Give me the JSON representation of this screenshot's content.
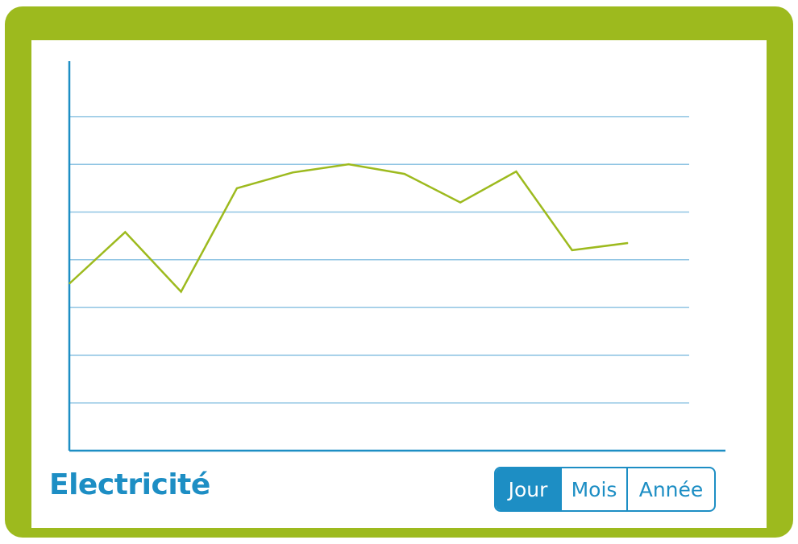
{
  "chart_data": {
    "type": "line",
    "title": "Electricité",
    "xlabel": "",
    "ylabel": "",
    "x": [
      0,
      1,
      2,
      3,
      4,
      5,
      6,
      7,
      8,
      9,
      10
    ],
    "series": [
      {
        "values": [
          3.5,
          4.58,
          3.33,
          5.5,
          5.83,
          6,
          5.8,
          5.2,
          5.85,
          4.2,
          4.35
        ]
      }
    ],
    "ylim": [
      0,
      8
    ],
    "grid": true,
    "grid_lines": 7,
    "line_color": "#9dba1e",
    "grid_color": "#8fc4e3",
    "axis_color": "#1d8ec4"
  },
  "period_selector": {
    "options": [
      "Jour",
      "Mois",
      "Année"
    ],
    "selected": "Jour"
  },
  "colors": {
    "frame": "#9dba1e",
    "accent": "#1d8ec4",
    "background": "#ffffff"
  }
}
